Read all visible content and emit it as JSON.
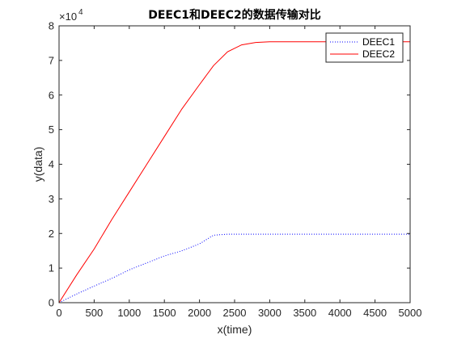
{
  "chart_data": {
    "type": "line",
    "title": "DEEC1和DEEC2的数据传输对比",
    "xlabel": "x(time)",
    "ylabel": "y(data)",
    "xlim": [
      0,
      5000
    ],
    "ylim": [
      0,
      80000
    ],
    "x_ticks": [
      0,
      500,
      1000,
      1500,
      2000,
      2500,
      3000,
      3500,
      4000,
      4500,
      5000
    ],
    "y_ticks": [
      0,
      1,
      2,
      3,
      4,
      5,
      6,
      7,
      8
    ],
    "y_exponent_label": "×10",
    "y_exponent": "4",
    "grid": false,
    "legend_position": "top-right",
    "series": [
      {
        "name": "DEEC1",
        "color": "#0000ff",
        "line_style": "dotted",
        "points": [
          [
            0,
            0
          ],
          [
            250,
            2500
          ],
          [
            500,
            4800
          ],
          [
            750,
            7000
          ],
          [
            1000,
            9500
          ],
          [
            1250,
            11500
          ],
          [
            1500,
            13500
          ],
          [
            1750,
            15000
          ],
          [
            2000,
            17000
          ],
          [
            2200,
            19500
          ],
          [
            2400,
            19800
          ],
          [
            2800,
            19800
          ],
          [
            3500,
            19800
          ],
          [
            4000,
            19800
          ],
          [
            4500,
            19800
          ],
          [
            5000,
            19800
          ]
        ]
      },
      {
        "name": "DEEC2",
        "color": "#ff0000",
        "line_style": "solid",
        "points": [
          [
            0,
            0
          ],
          [
            250,
            8000
          ],
          [
            500,
            15500
          ],
          [
            750,
            24000
          ],
          [
            1000,
            32000
          ],
          [
            1250,
            40000
          ],
          [
            1500,
            48000
          ],
          [
            1750,
            56000
          ],
          [
            2000,
            63000
          ],
          [
            2200,
            68500
          ],
          [
            2400,
            72500
          ],
          [
            2600,
            74500
          ],
          [
            2800,
            75200
          ],
          [
            3000,
            75400
          ],
          [
            3500,
            75400
          ],
          [
            4000,
            75400
          ],
          [
            4500,
            75400
          ],
          [
            5000,
            75400
          ]
        ]
      }
    ]
  }
}
